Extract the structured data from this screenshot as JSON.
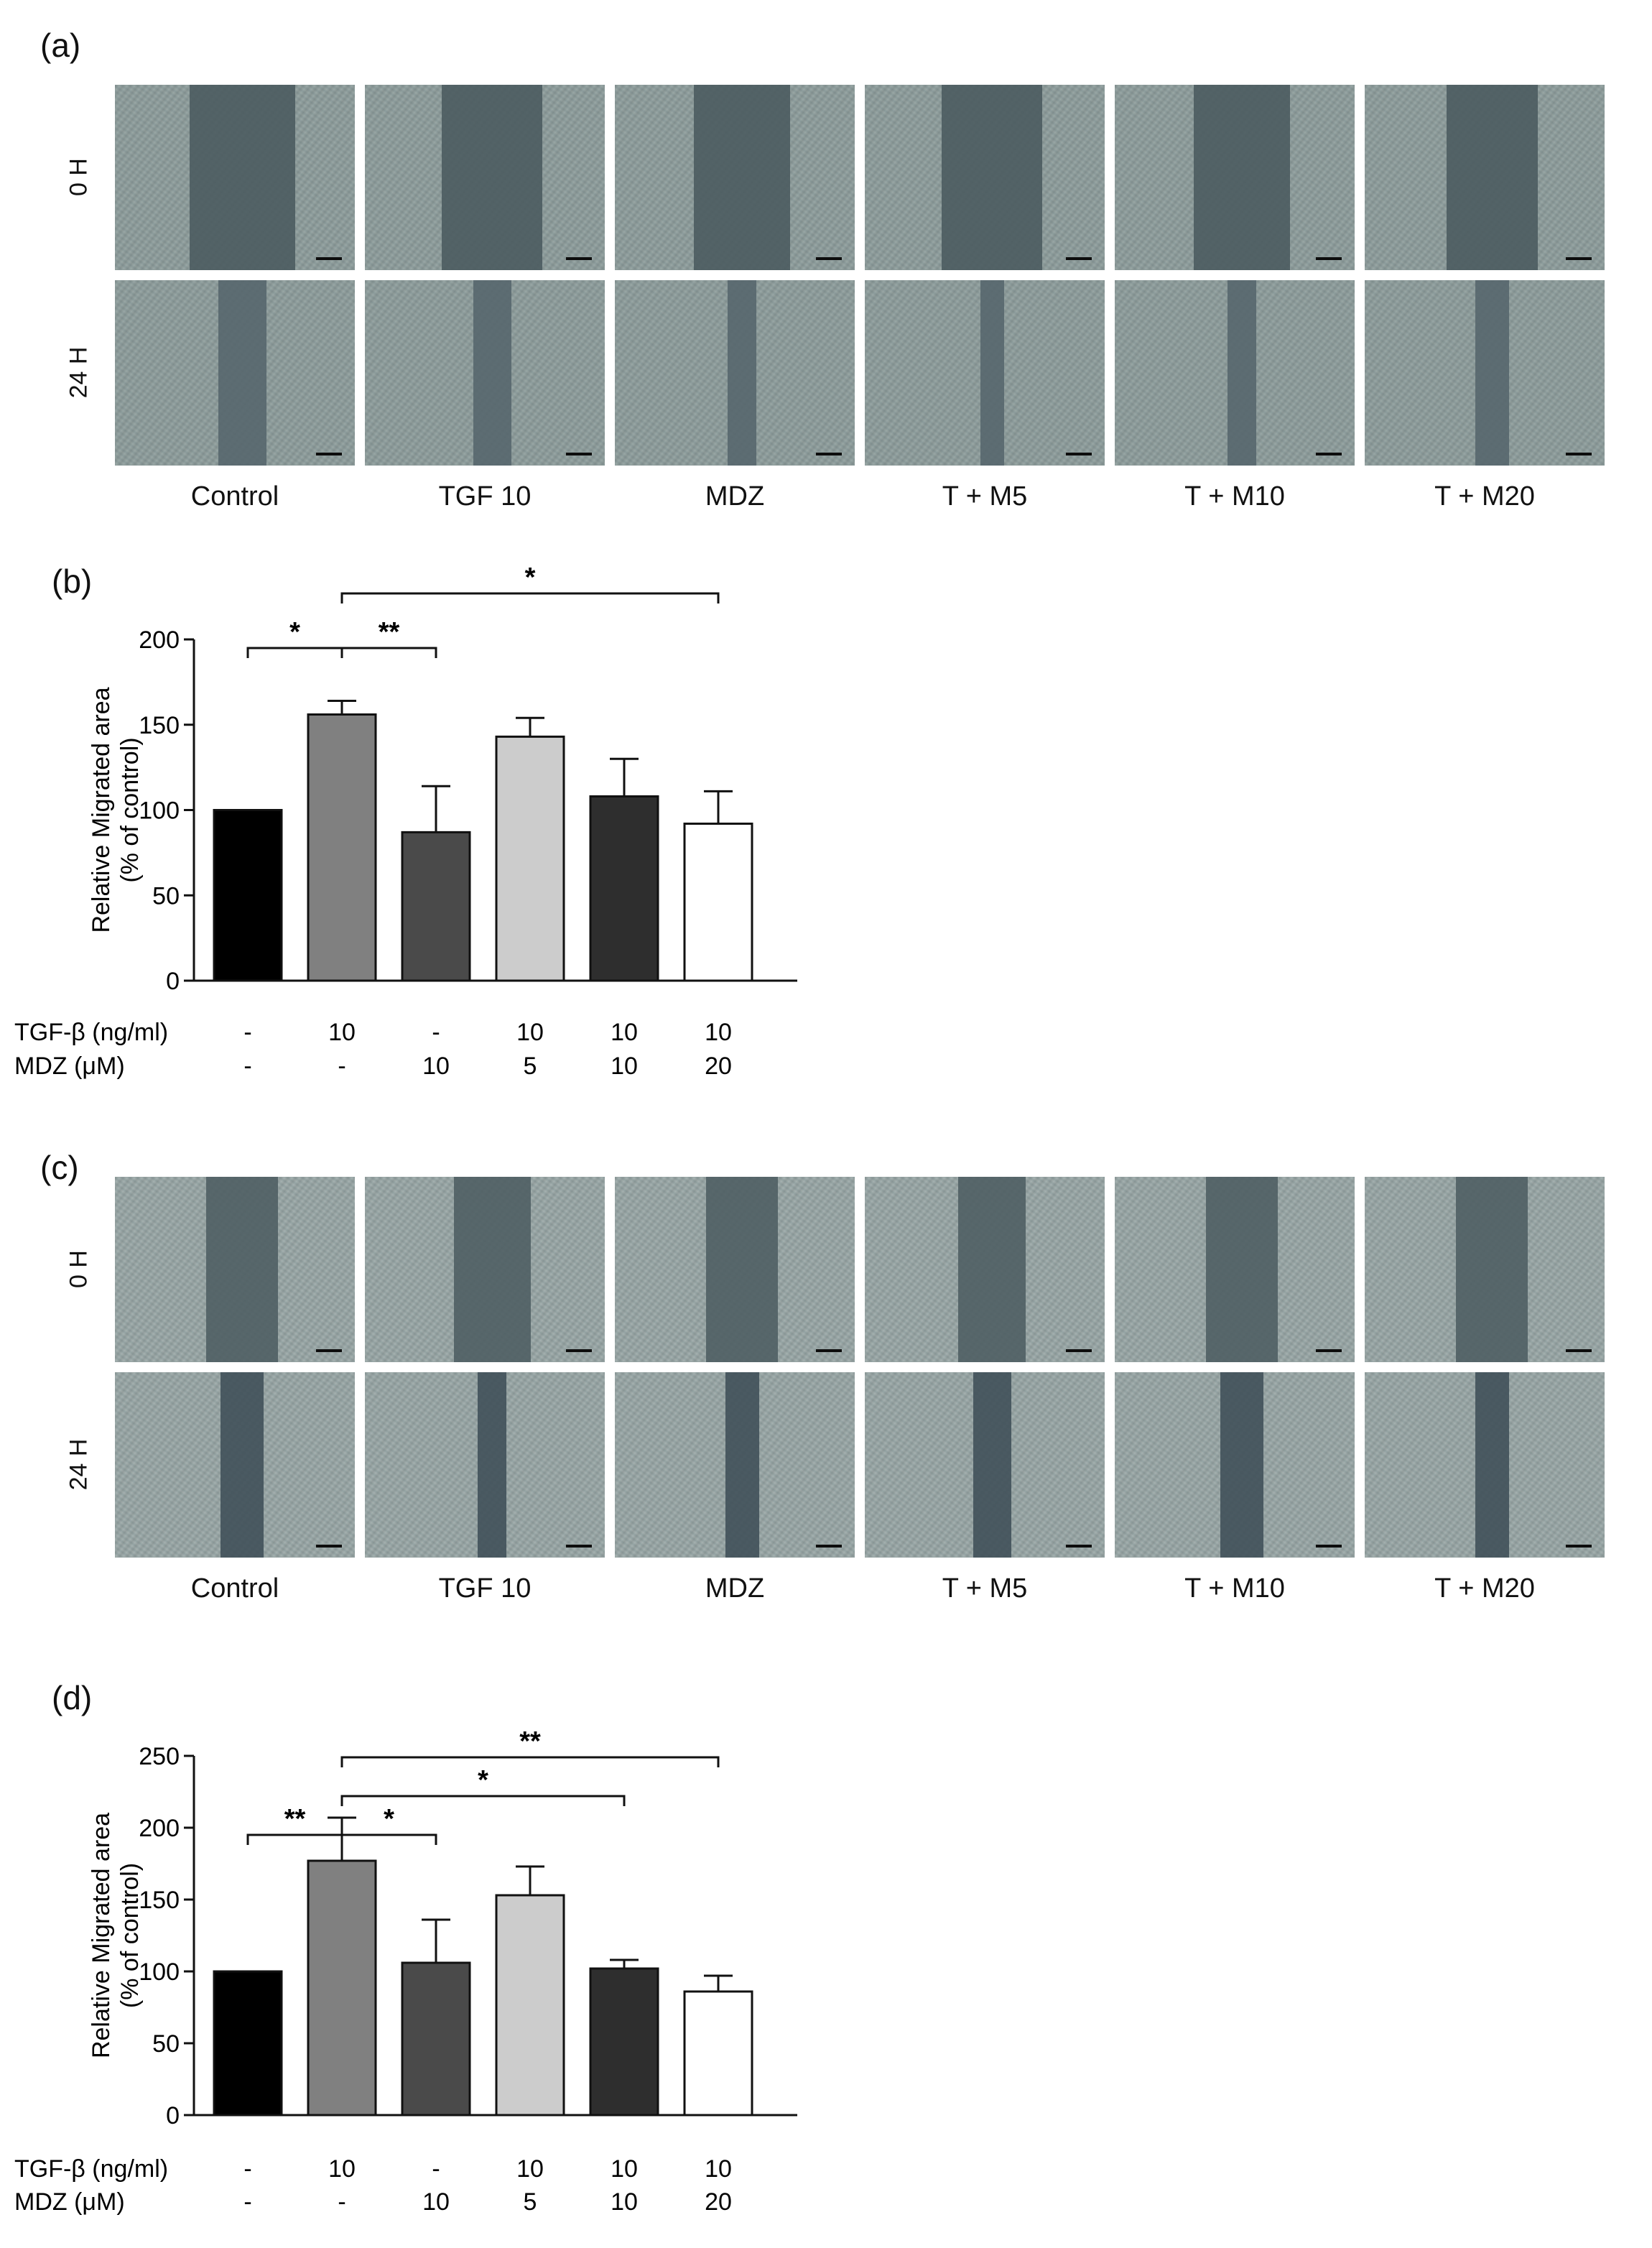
{
  "panel_labels": {
    "a": "(a)",
    "b": "(b)",
    "c": "(c)",
    "d": "(d)"
  },
  "row_labels": [
    "0 H",
    "24 H"
  ],
  "conditions": [
    "Control",
    "TGF 10",
    "MDZ",
    "T + M5",
    "T + M10",
    "T + M20"
  ],
  "micrographs": {
    "a": {
      "texture": [
        "#8c9c9c",
        "#9aa8a6"
      ],
      "rows": [
        {
          "gap_color": "#4a5a5e",
          "gap_fraction": [
            0.44,
            0.42,
            0.4,
            0.42,
            0.4,
            0.38
          ]
        },
        {
          "gap_color": "#55656c",
          "gap_fraction": [
            0.2,
            0.16,
            0.12,
            0.1,
            0.12,
            0.14
          ]
        }
      ]
    },
    "c": {
      "texture": [
        "#95a4a4",
        "#a6b2b1"
      ],
      "rows": [
        {
          "gap_color": "#4d5d62",
          "gap_fraction": [
            0.3,
            0.32,
            0.3,
            0.28,
            0.3,
            0.3
          ]
        },
        {
          "gap_color": "#3f4e58",
          "gap_fraction": [
            0.18,
            0.12,
            0.14,
            0.16,
            0.18,
            0.14
          ]
        }
      ]
    }
  },
  "chart_data": [
    {
      "type": "bar",
      "panel": "b",
      "ylabel": "Relative Migrated area\n(% of control)",
      "ylabel_line1": "Relative Migrated area",
      "ylabel_line2": "(% of control)",
      "ylim": [
        0,
        200
      ],
      "yticks": [
        "0",
        "50",
        "100",
        "150",
        "200"
      ],
      "yticks_values": [
        0,
        50,
        100,
        150,
        200
      ],
      "values": [
        100,
        156,
        87,
        143,
        108,
        92
      ],
      "errors": [
        0,
        8,
        27,
        11,
        22,
        19
      ],
      "bar_colors": [
        "#000000",
        "#808080",
        "#4a4a4a",
        "#cccccc",
        "#2e2e2e",
        "#ffffff"
      ],
      "row_tgf_label": "TGF-β (ng/ml)",
      "row_mdz_label": "MDZ (μM)",
      "tgf": [
        "-",
        "10",
        "-",
        "10",
        "10",
        "10"
      ],
      "mdz": [
        "-",
        "-",
        "10",
        "5",
        "10",
        "20"
      ],
      "significance": [
        {
          "from": 0,
          "to": 1,
          "level": 0,
          "label": "*"
        },
        {
          "from": 1,
          "to": 2,
          "level": 0,
          "label": "**"
        },
        {
          "from": 1,
          "to": 5,
          "level": 1,
          "label": "*"
        }
      ]
    },
    {
      "type": "bar",
      "panel": "d",
      "ylabel": "Relative Migrated area\n(% of control)",
      "ylabel_line1": "Relative Migrated area",
      "ylabel_line2": "(% of control)",
      "ylim": [
        0,
        250
      ],
      "yticks": [
        "0",
        "50",
        "100",
        "150",
        "200",
        "250"
      ],
      "yticks_values": [
        0,
        50,
        100,
        150,
        200,
        250
      ],
      "values": [
        100,
        177,
        106,
        153,
        102,
        86
      ],
      "errors": [
        0,
        30,
        30,
        20,
        6,
        11
      ],
      "bar_colors": [
        "#000000",
        "#808080",
        "#4a4a4a",
        "#cccccc",
        "#2e2e2e",
        "#ffffff"
      ],
      "row_tgf_label": "TGF-β (ng/ml)",
      "row_mdz_label": "MDZ (μM)",
      "tgf": [
        "-",
        "10",
        "-",
        "10",
        "10",
        "10"
      ],
      "mdz": [
        "-",
        "-",
        "10",
        "5",
        "10",
        "20"
      ],
      "significance": [
        {
          "from": 0,
          "to": 1,
          "level": 0,
          "label": "**"
        },
        {
          "from": 1,
          "to": 2,
          "level": 0,
          "label": "*"
        },
        {
          "from": 1,
          "to": 4,
          "level": 1,
          "label": "*"
        },
        {
          "from": 1,
          "to": 5,
          "level": 2,
          "label": "**"
        }
      ]
    }
  ]
}
